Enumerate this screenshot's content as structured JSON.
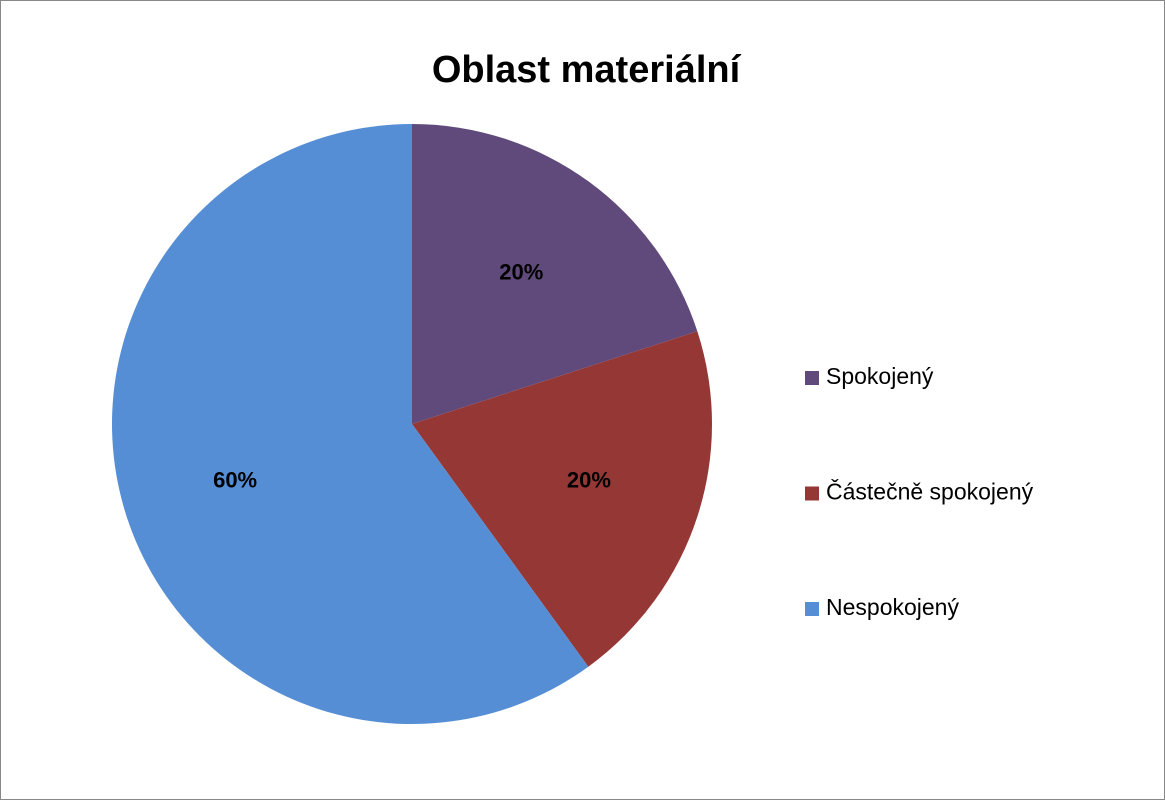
{
  "chart_data": {
    "type": "pie",
    "title": "Oblast materiální",
    "categories": [
      "Spokojený",
      "Částečně spokojený",
      "Nespokojený"
    ],
    "values": [
      20,
      20,
      60
    ],
    "value_labels": [
      "20%",
      "20%",
      "60%"
    ],
    "colors": [
      "#604a7b",
      "#953735",
      "#558ed5"
    ],
    "legend": "right"
  }
}
